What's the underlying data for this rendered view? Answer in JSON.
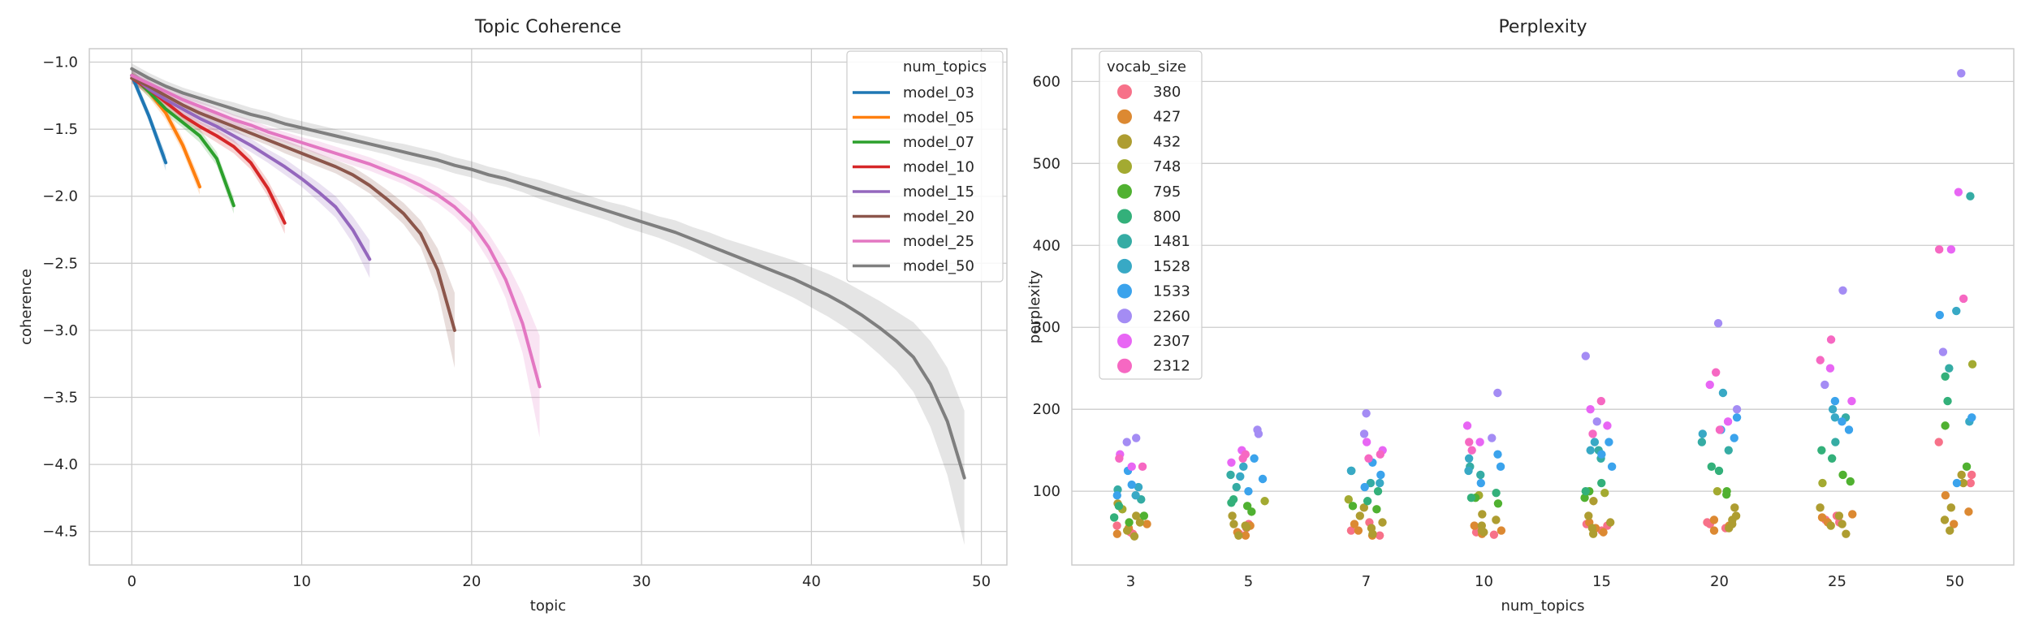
{
  "colors": {
    "background": "#ffffff",
    "grid": "#cccccc",
    "text": "#262626"
  },
  "chart_data": [
    {
      "type": "line",
      "title": "Topic Coherence",
      "xlabel": "topic",
      "ylabel": "coherence",
      "xlim": [
        -2.5,
        51.5
      ],
      "ylim": [
        -4.75,
        -0.9
      ],
      "xticks": [
        0,
        10,
        20,
        30,
        40,
        50
      ],
      "yticks": [
        -1.0,
        -1.5,
        -2.0,
        -2.5,
        -3.0,
        -3.5,
        -4.0,
        -4.5
      ],
      "grid": true,
      "legend_title": "num_topics",
      "legend_position": "top-right",
      "band": "shaded confidence interval around each line",
      "series": [
        {
          "name": "model_03",
          "color": "#1f77b4",
          "x": [
            0,
            1,
            2
          ],
          "y": [
            -1.1,
            -1.4,
            -1.75
          ],
          "ci": [
            0.04,
            0.04,
            0.06
          ]
        },
        {
          "name": "model_05",
          "color": "#ff7f0e",
          "x": [
            0,
            1,
            2,
            3,
            4
          ],
          "y": [
            -1.1,
            -1.22,
            -1.38,
            -1.62,
            -1.93
          ],
          "ci": [
            0.04,
            0.04,
            0.05,
            0.05,
            0.06
          ]
        },
        {
          "name": "model_07",
          "color": "#2ca02c",
          "x": [
            0,
            1,
            2,
            3,
            4,
            5,
            6
          ],
          "y": [
            -1.1,
            -1.22,
            -1.35,
            -1.45,
            -1.55,
            -1.72,
            -2.07
          ],
          "ci": [
            0.04,
            0.04,
            0.04,
            0.04,
            0.05,
            0.05,
            0.06
          ]
        },
        {
          "name": "model_10",
          "color": "#d62728",
          "x": [
            0,
            1,
            2,
            3,
            4,
            5,
            6,
            7,
            8,
            9
          ],
          "y": [
            -1.12,
            -1.2,
            -1.3,
            -1.4,
            -1.48,
            -1.55,
            -1.63,
            -1.75,
            -1.94,
            -2.2
          ],
          "ci": [
            0.04,
            0.04,
            0.04,
            0.04,
            0.04,
            0.05,
            0.05,
            0.05,
            0.06,
            0.08
          ]
        },
        {
          "name": "model_15",
          "color": "#9467bd",
          "x": [
            0,
            1,
            2,
            3,
            4,
            5,
            6,
            7,
            8,
            9,
            10,
            11,
            12,
            13,
            14
          ],
          "y": [
            -1.1,
            -1.2,
            -1.28,
            -1.35,
            -1.42,
            -1.48,
            -1.55,
            -1.62,
            -1.7,
            -1.78,
            -1.87,
            -1.97,
            -2.08,
            -2.25,
            -2.47
          ],
          "ci": [
            0.04,
            0.04,
            0.04,
            0.04,
            0.04,
            0.04,
            0.05,
            0.05,
            0.05,
            0.06,
            0.06,
            0.07,
            0.08,
            0.1,
            0.14
          ]
        },
        {
          "name": "model_20",
          "color": "#8c564b",
          "x": [
            0,
            1,
            2,
            3,
            4,
            5,
            6,
            7,
            8,
            9,
            10,
            11,
            12,
            13,
            14,
            15,
            16,
            17,
            18,
            19
          ],
          "y": [
            -1.12,
            -1.18,
            -1.25,
            -1.32,
            -1.38,
            -1.43,
            -1.48,
            -1.53,
            -1.58,
            -1.63,
            -1.68,
            -1.73,
            -1.78,
            -1.84,
            -1.92,
            -2.02,
            -2.13,
            -2.28,
            -2.55,
            -3.0
          ],
          "ci": [
            0.04,
            0.04,
            0.04,
            0.04,
            0.04,
            0.04,
            0.04,
            0.04,
            0.04,
            0.05,
            0.05,
            0.05,
            0.05,
            0.06,
            0.06,
            0.07,
            0.08,
            0.1,
            0.16,
            0.28
          ]
        },
        {
          "name": "model_25",
          "color": "#e377c2",
          "x": [
            0,
            1,
            2,
            3,
            4,
            5,
            6,
            7,
            8,
            9,
            10,
            11,
            12,
            13,
            14,
            15,
            16,
            17,
            18,
            19,
            20,
            21,
            22,
            23,
            24
          ],
          "y": [
            -1.1,
            -1.16,
            -1.22,
            -1.28,
            -1.33,
            -1.38,
            -1.43,
            -1.47,
            -1.52,
            -1.56,
            -1.6,
            -1.64,
            -1.68,
            -1.72,
            -1.76,
            -1.81,
            -1.86,
            -1.92,
            -1.99,
            -2.08,
            -2.2,
            -2.38,
            -2.62,
            -2.95,
            -3.42
          ],
          "ci": [
            0.04,
            0.04,
            0.04,
            0.04,
            0.04,
            0.04,
            0.04,
            0.04,
            0.04,
            0.04,
            0.04,
            0.05,
            0.05,
            0.05,
            0.05,
            0.05,
            0.05,
            0.06,
            0.06,
            0.07,
            0.08,
            0.1,
            0.14,
            0.22,
            0.38
          ]
        },
        {
          "name": "model_50",
          "color": "#7f7f7f",
          "x": [
            0,
            1,
            2,
            3,
            4,
            5,
            6,
            7,
            8,
            9,
            10,
            11,
            12,
            13,
            14,
            15,
            16,
            17,
            18,
            19,
            20,
            21,
            22,
            23,
            24,
            25,
            26,
            27,
            28,
            29,
            30,
            31,
            32,
            33,
            34,
            35,
            36,
            37,
            38,
            39,
            40,
            41,
            42,
            43,
            44,
            45,
            46,
            47,
            48,
            49
          ],
          "y": [
            -1.05,
            -1.12,
            -1.18,
            -1.23,
            -1.27,
            -1.31,
            -1.35,
            -1.39,
            -1.42,
            -1.46,
            -1.49,
            -1.52,
            -1.55,
            -1.58,
            -1.61,
            -1.64,
            -1.67,
            -1.7,
            -1.73,
            -1.77,
            -1.8,
            -1.84,
            -1.87,
            -1.91,
            -1.95,
            -1.99,
            -2.03,
            -2.07,
            -2.11,
            -2.15,
            -2.19,
            -2.23,
            -2.27,
            -2.32,
            -2.37,
            -2.42,
            -2.47,
            -2.52,
            -2.57,
            -2.62,
            -2.68,
            -2.74,
            -2.81,
            -2.89,
            -2.98,
            -3.08,
            -3.2,
            -3.4,
            -3.68,
            -4.1
          ],
          "ci": [
            0.04,
            0.04,
            0.04,
            0.04,
            0.04,
            0.04,
            0.05,
            0.05,
            0.05,
            0.05,
            0.05,
            0.05,
            0.05,
            0.05,
            0.05,
            0.05,
            0.06,
            0.06,
            0.06,
            0.06,
            0.06,
            0.06,
            0.06,
            0.06,
            0.07,
            0.07,
            0.07,
            0.07,
            0.07,
            0.08,
            0.08,
            0.08,
            0.09,
            0.09,
            0.1,
            0.1,
            0.11,
            0.12,
            0.13,
            0.14,
            0.15,
            0.16,
            0.17,
            0.18,
            0.2,
            0.22,
            0.26,
            0.32,
            0.4,
            0.5
          ]
        }
      ]
    },
    {
      "type": "scatter",
      "title": "Perplexity",
      "xlabel": "num_topics",
      "ylabel": "perplexity",
      "categories": [
        "3",
        "5",
        "7",
        "10",
        "15",
        "20",
        "25",
        "50"
      ],
      "ylim": [
        10,
        640
      ],
      "yticks": [
        100,
        200,
        300,
        400,
        500,
        600
      ],
      "grid": true,
      "legend_title": "vocab_size",
      "legend_position": "top-left",
      "hue_order": [
        "380",
        "427",
        "432",
        "748",
        "795",
        "800",
        "1481",
        "1528",
        "1533",
        "2260",
        "2307",
        "2312"
      ],
      "series": [
        {
          "name": "380",
          "color": "#f77189",
          "values": [
            [
              50,
              48,
              58
            ],
            [
              48,
              55,
              60
            ],
            [
              52,
              46,
              62
            ],
            [
              55,
              50,
              47
            ],
            [
              58,
              60,
              52
            ],
            [
              60,
              55,
              62
            ],
            [
              62,
              70,
              65
            ],
            [
              160,
              110,
              120
            ]
          ]
        },
        {
          "name": "427",
          "color": "#dc8932",
          "values": [
            [
              48,
              55,
              60
            ],
            [
              50,
              46,
              58
            ],
            [
              46,
              52,
              60
            ],
            [
              52,
              48,
              58
            ],
            [
              50,
              55,
              62
            ],
            [
              58,
              52,
              65
            ],
            [
              68,
              72,
              62
            ],
            [
              75,
              60,
              95
            ]
          ]
        },
        {
          "name": "432",
          "color": "#ae9d31",
          "values": [
            [
              45,
              52,
              62,
              70,
              85
            ],
            [
              46,
              56,
              60,
              70,
              58
            ],
            [
              48,
              55,
              62,
              70,
              80
            ],
            [
              50,
              58,
              65,
              72,
              52
            ],
            [
              48,
              55,
              62,
              70,
              88
            ],
            [
              55,
              60,
              70,
              80,
              65
            ],
            [
              48,
              60,
              70,
              80,
              58
            ],
            [
              52,
              65,
              80,
              120,
              110
            ]
          ]
        },
        {
          "name": "748",
          "color": "#a3aa31",
          "values": [
            [
              78
            ],
            [
              88
            ],
            [
              90
            ],
            [
              95
            ],
            [
              98
            ],
            [
              100
            ],
            [
              110
            ],
            [
              255
            ]
          ]
        },
        {
          "name": "795",
          "color": "#50b131",
          "values": [
            [
              62,
              70
            ],
            [
              75,
              82
            ],
            [
              82,
              78
            ],
            [
              85,
              92
            ],
            [
              92,
              100
            ],
            [
              100,
              96
            ],
            [
              120,
              112
            ],
            [
              180,
              130
            ]
          ]
        },
        {
          "name": "800",
          "color": "#33b07a",
          "values": [
            [
              82,
              68
            ],
            [
              90,
              86
            ],
            [
              88,
              100
            ],
            [
              98,
              92
            ],
            [
              110,
              100
            ],
            [
              130,
              125
            ],
            [
              150,
              140
            ],
            [
              240,
              210
            ]
          ]
        },
        {
          "name": "1481",
          "color": "#35aca4",
          "values": [
            [
              90,
              102
            ],
            [
              105,
              120
            ],
            [
              110,
              125
            ],
            [
              120,
              130
            ],
            [
              140,
              150
            ],
            [
              160,
              150
            ],
            [
              160,
              190
            ],
            [
              250,
              460
            ]
          ]
        },
        {
          "name": "1528",
          "color": "#38a9c5",
          "values": [
            [
              105,
              95
            ],
            [
              118,
              130
            ],
            [
              125,
              110
            ],
            [
              140,
              125
            ],
            [
              150,
              160
            ],
            [
              170,
              220
            ],
            [
              190,
              200
            ],
            [
              320,
              185
            ]
          ]
        },
        {
          "name": "1533",
          "color": "#3ba3ec",
          "values": [
            [
              108,
              125,
              95
            ],
            [
              115,
              140,
              100
            ],
            [
              120,
              135,
              105
            ],
            [
              130,
              145,
              110
            ],
            [
              145,
              160,
              130
            ],
            [
              165,
              175,
              190
            ],
            [
              185,
              175,
              210
            ],
            [
              315,
              190,
              110
            ]
          ]
        },
        {
          "name": "2260",
          "color": "#a48cf4",
          "values": [
            [
              165,
              160
            ],
            [
              175,
              170
            ],
            [
              195,
              170
            ],
            [
              220,
              165
            ],
            [
              265,
              185
            ],
            [
              305,
              200
            ],
            [
              345,
              230
            ],
            [
              610,
              270
            ]
          ]
        },
        {
          "name": "2307",
          "color": "#e866f4",
          "values": [
            [
              145,
              130
            ],
            [
              150,
              135
            ],
            [
              150,
              160
            ],
            [
              180,
              160
            ],
            [
              200,
              180
            ],
            [
              230,
              185
            ],
            [
              250,
              210
            ],
            [
              465,
              395
            ]
          ]
        },
        {
          "name": "2312",
          "color": "#f668c2",
          "values": [
            [
              130,
              140
            ],
            [
              140,
              145
            ],
            [
              145,
              140
            ],
            [
              160,
              150
            ],
            [
              210,
              170
            ],
            [
              245,
              175
            ],
            [
              285,
              260
            ],
            [
              395,
              335
            ]
          ]
        }
      ]
    }
  ]
}
